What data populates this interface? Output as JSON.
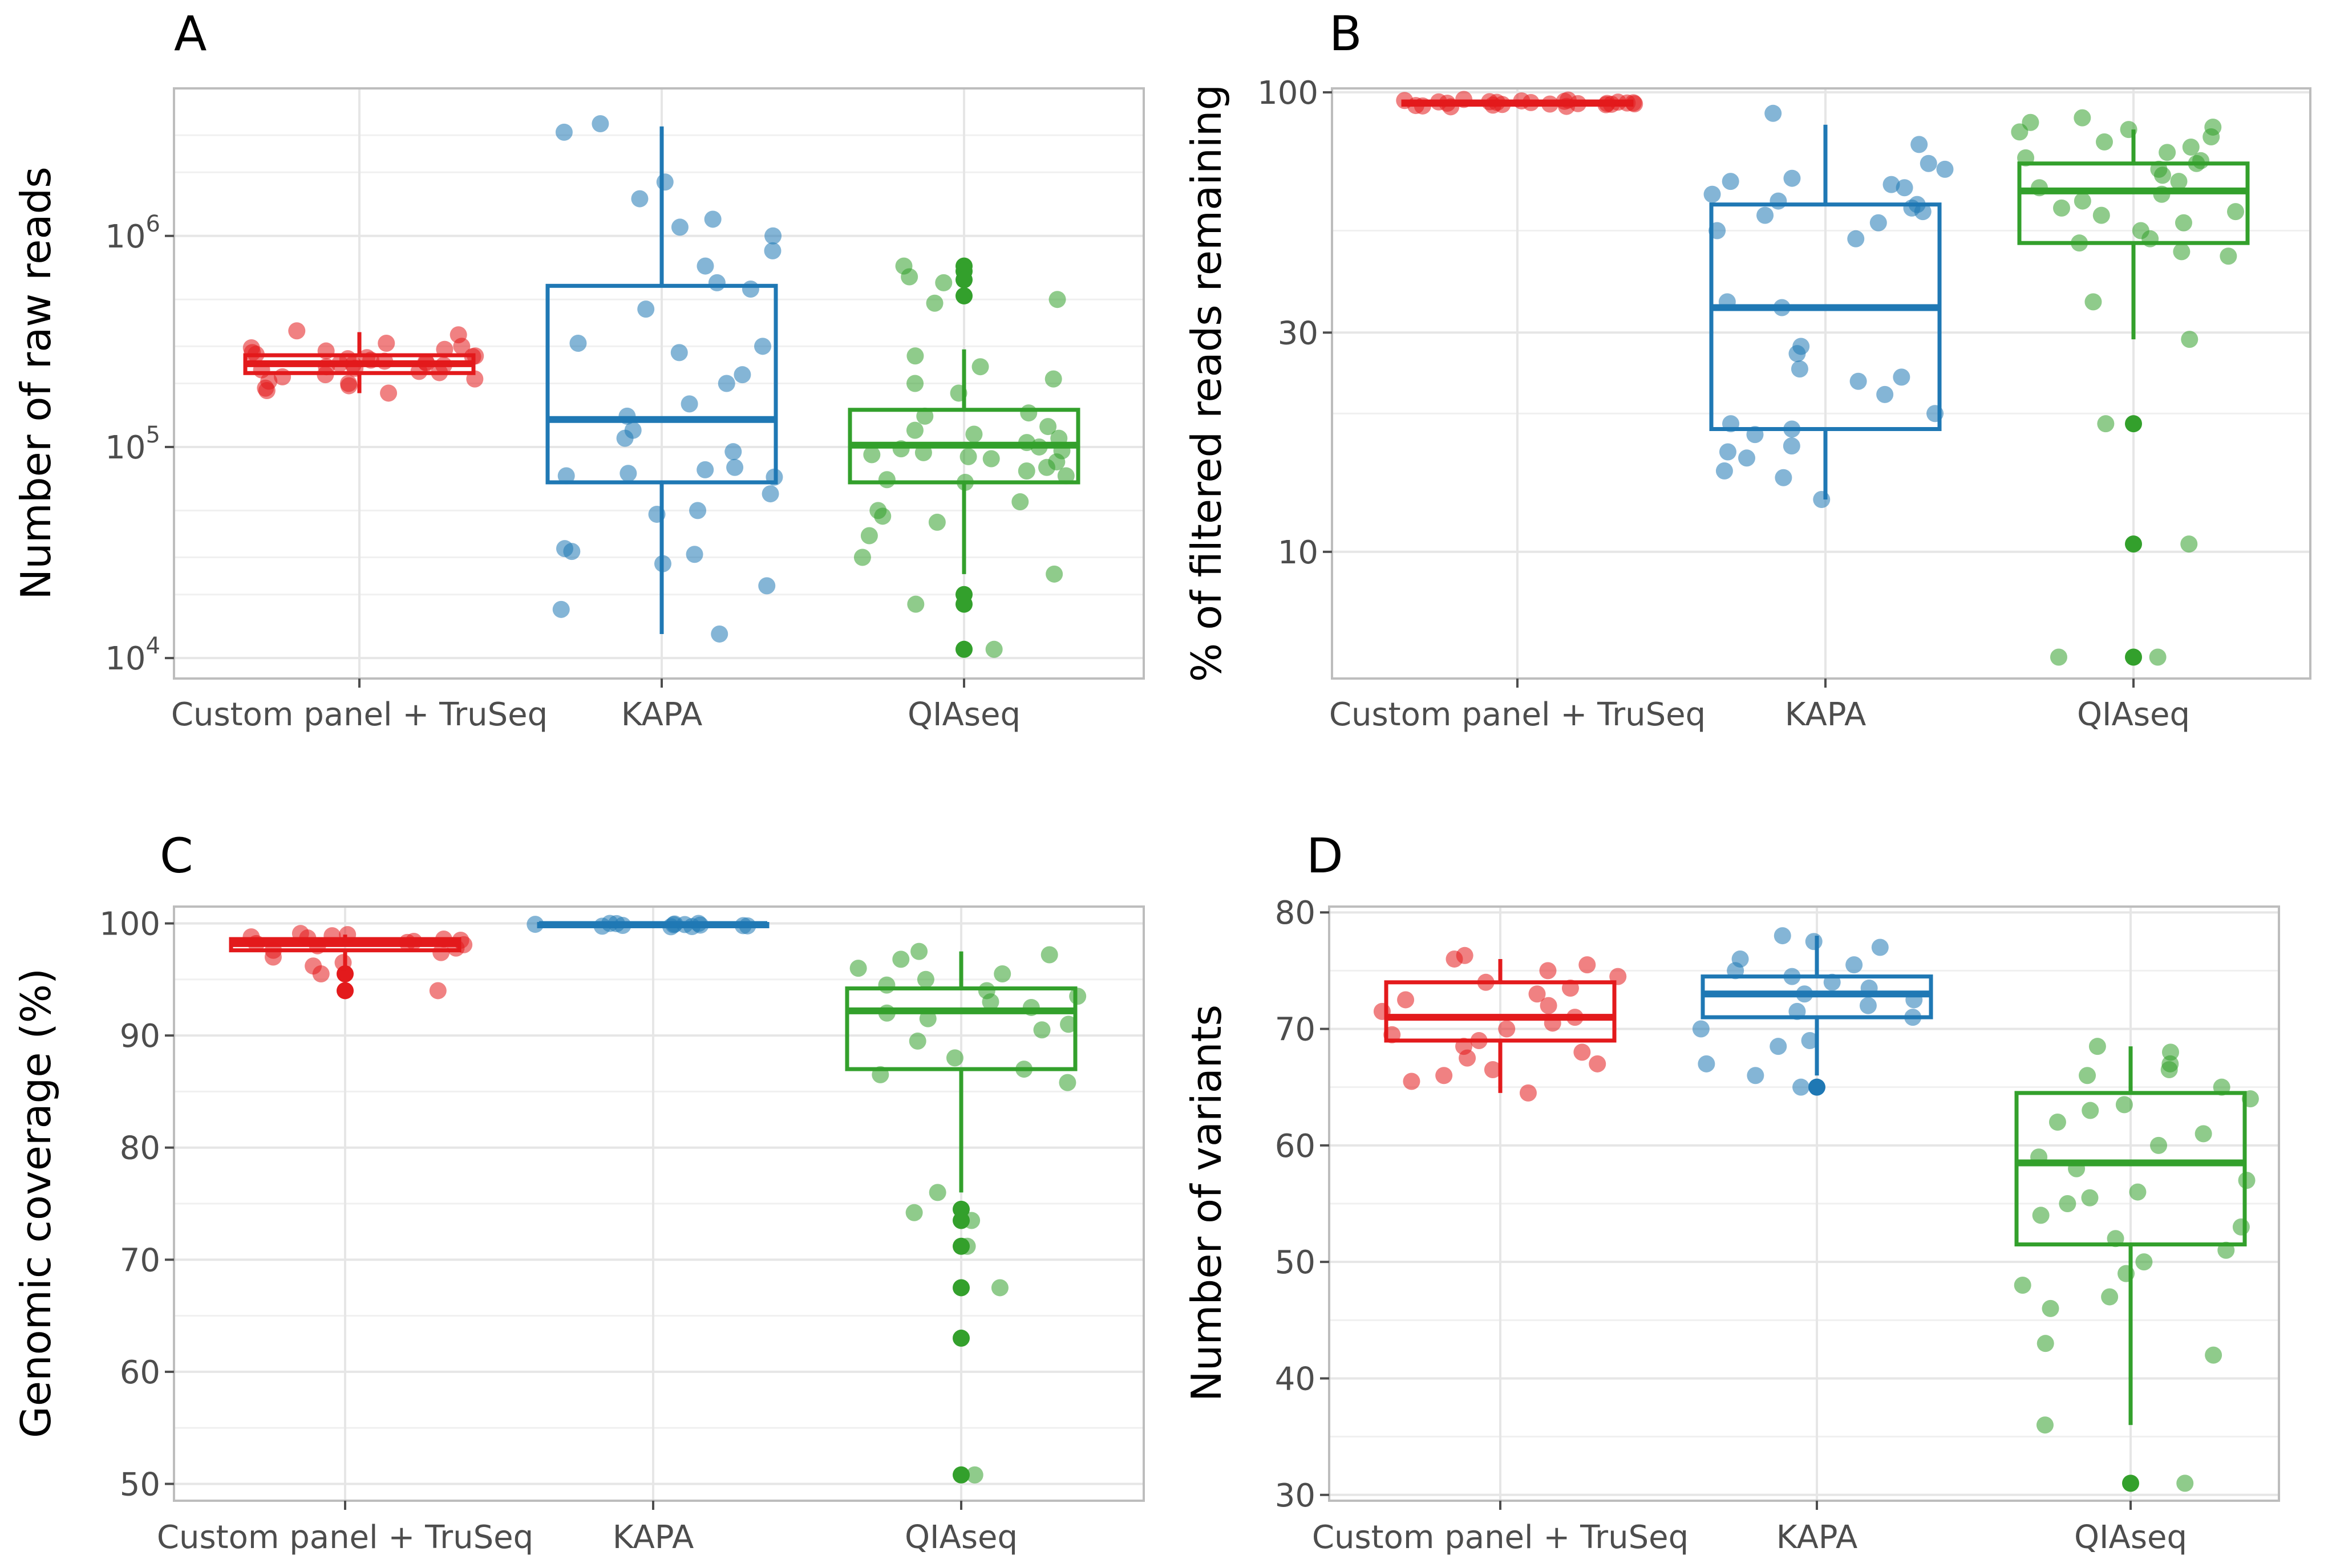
{
  "figure": {
    "colors": {
      "custom": "#E31A1C",
      "kapa": "#1F78B4",
      "qiaseq": "#33A02C",
      "grid": "#e6e6e6",
      "border": "#bdbdbd"
    },
    "categories": [
      "Custom panel + TruSeq",
      "KAPA",
      "QIAseq"
    ]
  },
  "chart_data": [
    {
      "panel": "A",
      "type": "boxplot",
      "yscale": "log",
      "ylabel": "Number of raw reads",
      "ylim": [
        8000,
        5000000
      ],
      "yticks": [
        10000,
        100000,
        1000000
      ],
      "ytick_base": [
        "10",
        "10",
        "10"
      ],
      "ytick_exp": [
        "4",
        "5",
        "6"
      ],
      "boxes": [
        {
          "category": "Custom panel + TruSeq",
          "q1": 224000,
          "median": 248000,
          "q3": 272000,
          "whisker_low": 180000,
          "whisker_high": 350000
        },
        {
          "category": "KAPA",
          "q1": 68000,
          "median": 135000,
          "q3": 580000,
          "whisker_low": 13000,
          "whisker_high": 3300000
        },
        {
          "category": "QIAseq",
          "q1": 68000,
          "median": 102000,
          "q3": 150000,
          "whisker_low": 25000,
          "whisker_high": 290000
        }
      ],
      "outliers": [
        {
          "category": "QIAseq",
          "values": [
            720000,
            680000,
            620000,
            520000,
            20000,
            18000,
            11000
          ]
        }
      ],
      "points": [
        {
          "category": "Custom panel + TruSeq",
          "values": [
            355000,
            340000,
            310000,
            300000,
            295000,
            290000,
            285000,
            280000,
            275000,
            270000,
            268000,
            265000,
            262000,
            258000,
            255000,
            252000,
            250000,
            248000,
            246000,
            244000,
            240000,
            236000,
            232000,
            228000,
            225000,
            220000,
            215000,
            210000,
            205000,
            200000,
            195000,
            190000,
            185000,
            180000
          ]
        },
        {
          "category": "KAPA",
          "values": [
            3400000,
            3100000,
            1800000,
            1500000,
            1200000,
            1100000,
            1000000,
            850000,
            720000,
            600000,
            560000,
            450000,
            310000,
            300000,
            280000,
            220000,
            200000,
            160000,
            140000,
            120000,
            110000,
            95000,
            80000,
            78000,
            75000,
            73000,
            72000,
            60000,
            50000,
            48000,
            33000,
            32000,
            31000,
            28000,
            22000,
            17000,
            13000
          ]
        },
        {
          "category": "QIAseq",
          "values": [
            720000,
            640000,
            600000,
            500000,
            480000,
            270000,
            240000,
            210000,
            200000,
            180000,
            145000,
            140000,
            125000,
            120000,
            115000,
            110000,
            105000,
            100000,
            98000,
            96000,
            94000,
            92000,
            90000,
            88000,
            85000,
            80000,
            77000,
            73000,
            70000,
            68000,
            55000,
            50000,
            47000,
            44000,
            38000,
            30000,
            25000,
            18000,
            11000
          ]
        }
      ]
    },
    {
      "panel": "B",
      "type": "boxplot",
      "yscale": "log",
      "ylabel": "% of filtered reads remaining",
      "ylim": [
        5.3,
        102
      ],
      "yticks": [
        10,
        30,
        100
      ],
      "ytick_labels": [
        "10",
        "30",
        "100"
      ],
      "boxes": [
        {
          "category": "Custom panel + TruSeq",
          "q1": 94,
          "median": 94.8,
          "q3": 95.5,
          "whisker_low": 93,
          "whisker_high": 96.5
        },
        {
          "category": "KAPA",
          "q1": 18.5,
          "median": 34,
          "q3": 57,
          "whisker_low": 13,
          "whisker_high": 85
        },
        {
          "category": "QIAseq",
          "q1": 47,
          "median": 61,
          "q3": 70,
          "whisker_low": 29,
          "whisker_high": 83
        }
      ],
      "outliers": [
        {
          "category": "QIAseq",
          "values": [
            19,
            10.4,
            5.9
          ]
        }
      ],
      "points": [
        {
          "category": "Custom panel + TruSeq",
          "values": [
            96.5,
            96.2,
            96,
            95.8,
            95.6,
            95.4,
            95.3,
            95.2,
            95.1,
            95,
            94.9,
            94.8,
            94.7,
            94.6,
            94.5,
            94.4,
            94.3,
            94.2,
            94.1,
            94,
            93.8,
            93.6,
            93.4,
            93.2,
            93
          ]
        },
        {
          "category": "KAPA",
          "values": [
            90,
            77,
            70,
            68,
            65,
            64,
            63,
            62,
            60,
            58,
            57,
            56,
            55,
            54,
            52,
            50,
            48,
            35,
            34,
            28,
            27,
            25,
            24,
            23.5,
            22,
            20,
            19,
            18.5,
            18,
            17,
            16.5,
            16,
            15,
            14.5,
            13
          ]
        },
        {
          "category": "QIAseq",
          "values": [
            88,
            86,
            84,
            83,
            82,
            80,
            78,
            76,
            74,
            72,
            71,
            70,
            68,
            66,
            64,
            62,
            60,
            58,
            56,
            55,
            54,
            52,
            50,
            48,
            47,
            45,
            44,
            35,
            29,
            19,
            10.4,
            5.9,
            5.9
          ]
        }
      ]
    },
    {
      "panel": "C",
      "type": "boxplot",
      "yscale": "linear",
      "ylabel": "Genomic coverage (%)",
      "ylim": [
        48.5,
        101.5
      ],
      "yticks": [
        50,
        60,
        70,
        80,
        90,
        100
      ],
      "ytick_labels": [
        "50",
        "60",
        "70",
        "80",
        "90",
        "100"
      ],
      "boxes": [
        {
          "category": "Custom panel + TruSeq",
          "q1": 97.6,
          "median": 98.2,
          "q3": 98.6,
          "whisker_low": 96.2,
          "whisker_high": 99
        },
        {
          "category": "KAPA",
          "q1": 99.8,
          "median": 99.9,
          "q3": 99.95,
          "whisker_low": 99.7,
          "whisker_high": 100
        },
        {
          "category": "QIAseq",
          "q1": 87,
          "median": 92.2,
          "q3": 94.2,
          "whisker_low": 76,
          "whisker_high": 97.5
        }
      ],
      "outliers": [
        {
          "category": "Custom panel + TruSeq",
          "values": [
            95.5,
            94
          ]
        },
        {
          "category": "QIAseq",
          "values": [
            74.5,
            73.5,
            71.2,
            67.5,
            63,
            50.8
          ]
        }
      ],
      "points": [
        {
          "category": "Custom panel + TruSeq",
          "values": [
            99.1,
            99,
            98.9,
            98.8,
            98.7,
            98.6,
            98.5,
            98.4,
            98.3,
            98.2,
            98.1,
            98,
            97.8,
            97.6,
            97.4,
            97,
            96.5,
            96.2,
            95.5,
            94
          ]
        },
        {
          "category": "KAPA",
          "values": [
            100,
            100,
            99.98,
            99.95,
            99.92,
            99.9,
            99.88,
            99.85,
            99.82,
            99.8,
            99.78,
            99.75,
            99.72,
            99.7
          ]
        },
        {
          "category": "QIAseq",
          "values": [
            97.5,
            97.2,
            96.8,
            96,
            95.5,
            95,
            94.5,
            94,
            93.5,
            93,
            92.5,
            92,
            91.5,
            91,
            90.5,
            89.5,
            88,
            87,
            86.5,
            85.8,
            76,
            74.2,
            73.5,
            71.2,
            67.5,
            50.8
          ]
        }
      ]
    },
    {
      "panel": "D",
      "type": "boxplot",
      "yscale": "linear",
      "ylabel": "Number of variants",
      "ylim": [
        29.5,
        80.5
      ],
      "yticks": [
        30,
        40,
        50,
        60,
        70,
        80
      ],
      "ytick_labels": [
        "30",
        "40",
        "50",
        "60",
        "70",
        "80"
      ],
      "boxes": [
        {
          "category": "Custom panel + TruSeq",
          "q1": 69,
          "median": 71,
          "q3": 74,
          "whisker_low": 64.5,
          "whisker_high": 76
        },
        {
          "category": "KAPA",
          "q1": 71,
          "median": 73,
          "q3": 74.5,
          "whisker_low": 66,
          "whisker_high": 78
        },
        {
          "category": "QIAseq",
          "q1": 51.5,
          "median": 58.5,
          "q3": 64.5,
          "whisker_low": 36,
          "whisker_high": 68.5
        }
      ],
      "outliers": [
        {
          "category": "KAPA",
          "values": [
            65
          ]
        },
        {
          "category": "QIAseq",
          "values": [
            31
          ]
        }
      ],
      "points": [
        {
          "category": "Custom panel + TruSeq",
          "values": [
            76.3,
            76,
            75.5,
            75,
            74.5,
            74,
            73.5,
            73,
            72.5,
            72,
            71.5,
            71,
            70.5,
            70,
            69.5,
            69,
            68.5,
            68,
            67.5,
            67,
            66.5,
            66,
            65.5,
            64.5
          ]
        },
        {
          "category": "KAPA",
          "values": [
            78,
            77.5,
            77,
            76,
            75.5,
            75,
            74.5,
            74,
            73.5,
            73,
            72.5,
            72,
            71.5,
            71,
            70,
            69,
            68.5,
            67,
            66,
            65
          ]
        },
        {
          "category": "QIAseq",
          "values": [
            68.5,
            68,
            67,
            66.5,
            66,
            65,
            64,
            63.5,
            63,
            62,
            61,
            60,
            59,
            58,
            57,
            56,
            55.5,
            55,
            54,
            53,
            52,
            51,
            50,
            49,
            48,
            47,
            46,
            43,
            42,
            36,
            31
          ]
        }
      ]
    }
  ]
}
